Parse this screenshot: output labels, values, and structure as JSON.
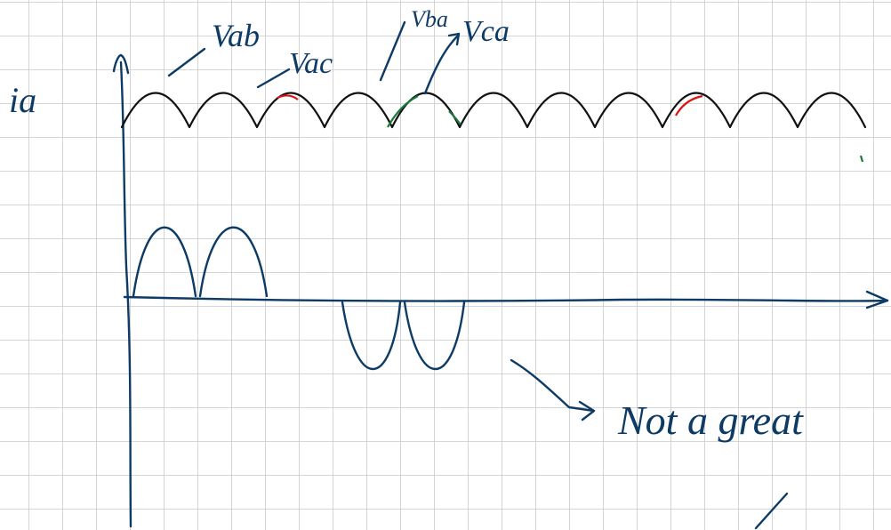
{
  "labels": {
    "y_axis": "ia",
    "vab": "Vab",
    "vac": "Vac",
    "vba": "Vba",
    "vca": "Vca",
    "note": "Not a great"
  }
}
